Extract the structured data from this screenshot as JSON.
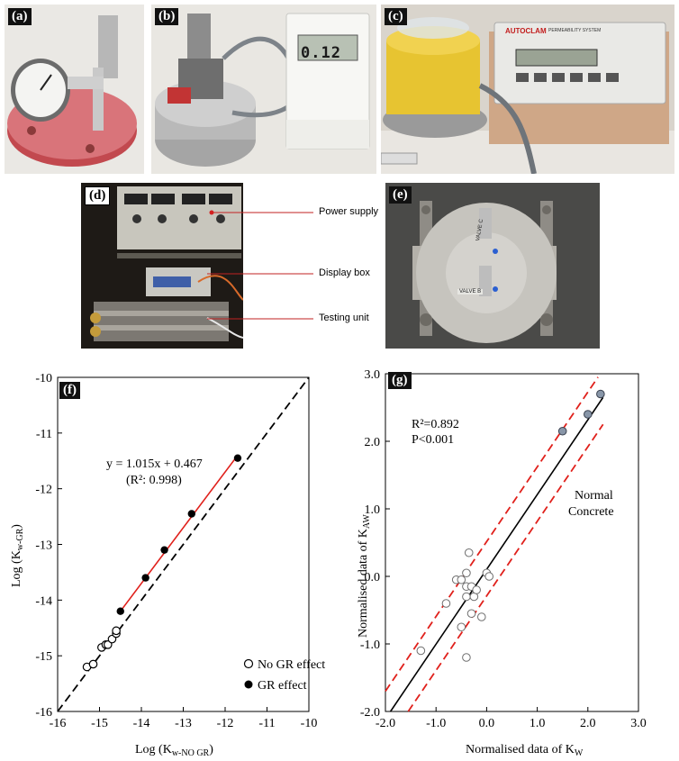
{
  "panels": {
    "a": "(a)",
    "b": "(b)",
    "c": "(c)",
    "d": "(d)",
    "e": "(e)",
    "f": "(f)",
    "g": "(g)"
  },
  "photo_text": {
    "display_b": "0.12",
    "autoclam": "AUTOCLAM",
    "autoclam_sub": "PERMEABILITY SYSTEM",
    "valve_c": "VALVE C",
    "valve_b": "VALVE B"
  },
  "callouts": {
    "power_supply": "Power supply",
    "display_box": "Display box",
    "testing_unit": "Testing unit"
  },
  "chart_data": [
    {
      "id": "f",
      "type": "scatter",
      "xlabel_main": "Log (K",
      "xlabel_sub": "w-NO GR",
      "xlabel_close": ")",
      "ylabel_main": "Log (K",
      "ylabel_sub": "w-GR",
      "ylabel_close": ")",
      "xlim": [
        -16,
        -10
      ],
      "ylim": [
        -16,
        -10
      ],
      "xticks": [
        -16,
        -15,
        -14,
        -13,
        -12,
        -11,
        -10
      ],
      "yticks": [
        -16,
        -15,
        -14,
        -13,
        -12,
        -11,
        -10
      ],
      "equation": "y = 1.015x + 0.467",
      "r2_label": "(R²: 0.998)",
      "legend_position": "bottom-right",
      "series": [
        {
          "name": "No GR effect",
          "marker": "open-circle",
          "x": [
            -15.3,
            -15.15,
            -14.95,
            -14.85,
            -14.8,
            -14.7,
            -14.6,
            -14.6
          ],
          "y": [
            -15.2,
            -15.15,
            -14.85,
            -14.8,
            -14.8,
            -14.7,
            -14.6,
            -14.55
          ]
        },
        {
          "name": "GR effect",
          "marker": "filled-circle",
          "x": [
            -14.5,
            -13.9,
            -13.45,
            -12.8,
            -11.7
          ],
          "y": [
            -14.2,
            -13.6,
            -13.1,
            -12.45,
            -11.45
          ]
        }
      ],
      "lines": [
        {
          "kind": "1:1 reference",
          "style": "dashed",
          "color": "#000000",
          "x": [
            -16,
            -10
          ],
          "y": [
            -16,
            -10
          ]
        },
        {
          "kind": "fit",
          "style": "solid",
          "color": "#e0201b",
          "x": [
            -14.5,
            -11.7
          ],
          "y": [
            -14.2,
            -11.4
          ]
        }
      ]
    },
    {
      "id": "g",
      "type": "scatter",
      "xlabel_main": "Normalised data of K",
      "xlabel_sub": "W",
      "ylabel_main": "Normalised data of K",
      "ylabel_sub": "AW",
      "xlim": [
        -2.0,
        3.0
      ],
      "ylim": [
        -2.0,
        3.0
      ],
      "xticks": [
        "-2.0",
        "-1.0",
        "0.0",
        "1.0",
        "2.0",
        "3.0"
      ],
      "yticks": [
        "-2.0",
        "-1.0",
        "0.0",
        "1.0",
        "2.0",
        "3.0"
      ],
      "stats": [
        "R²=0.892",
        "P<0.001"
      ],
      "annotation": [
        "Normal",
        "Concrete"
      ],
      "series": [
        {
          "name": "",
          "marker": "open-grey-circle",
          "x": [
            -1.3,
            -0.8,
            -0.6,
            -0.5,
            -0.5,
            -0.4,
            -0.4,
            -0.35,
            -0.3,
            -0.3,
            -0.25,
            -0.2,
            -0.1,
            0.0,
            0.05,
            -0.4,
            -0.4
          ],
          "y": [
            -1.1,
            -0.4,
            -0.05,
            -0.75,
            -0.05,
            -0.15,
            -0.3,
            0.35,
            -0.55,
            -0.15,
            -0.3,
            -0.2,
            -0.6,
            0.05,
            0.0,
            -1.2,
            0.05
          ]
        },
        {
          "name": "",
          "marker": "filled-grey-circle",
          "x": [
            1.5,
            2.0,
            2.25
          ],
          "y": [
            2.15,
            2.4,
            2.7
          ]
        }
      ],
      "lines": [
        {
          "kind": "fit",
          "style": "solid",
          "color": "#000000",
          "x": [
            -1.9,
            2.3
          ],
          "y": [
            -2.0,
            2.65
          ]
        },
        {
          "kind": "upper bound",
          "style": "dashed",
          "color": "#e0201b",
          "x": [
            -2.0,
            2.2
          ],
          "y": [
            -1.7,
            2.95
          ]
        },
        {
          "kind": "lower bound",
          "style": "dashed",
          "color": "#e0201b",
          "x": [
            -1.55,
            2.3
          ],
          "y": [
            -2.0,
            2.25
          ]
        }
      ]
    }
  ]
}
